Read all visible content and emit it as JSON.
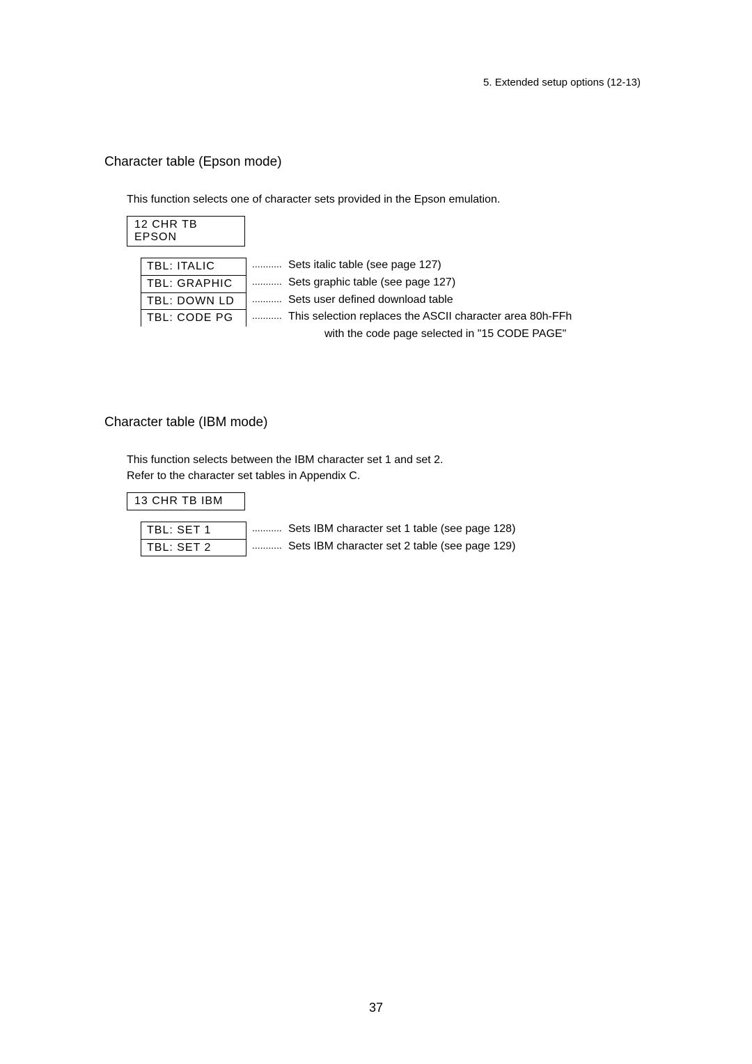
{
  "header_note": "5.  Extended setup options (12-13)",
  "sections": [
    {
      "title": "Character table (Epson mode)",
      "description": "This function selects one of character sets provided in the Epson emulation.",
      "menu_header": "12 CHR TB  EPSON",
      "options": [
        {
          "label": "TBL:  ITALIC",
          "desc": "Sets italic table (see page 127)"
        },
        {
          "label": "TBL:  GRAPHIC",
          "desc": "Sets graphic table (see page 127)"
        },
        {
          "label": "TBL:  DOWN LD",
          "desc": "Sets user defined download table"
        },
        {
          "label": "TBL:  CODE PG",
          "desc": "This selection replaces the ASCII character area 80h-FFh"
        }
      ],
      "continuation": "with the code page selected in \"15 CODE PAGE\""
    },
    {
      "title": "Character table (IBM mode)",
      "description": "This function selects between the IBM character set 1 and set 2.\nRefer to the character set tables in Appendix C.",
      "menu_header": "13 CHR TB  IBM",
      "options": [
        {
          "label": "TBL:  SET 1",
          "desc": "Sets IBM character set 1 table (see page 128)"
        },
        {
          "label": "TBL:  SET 2",
          "desc": "Sets IBM character set 2 table (see page 129)"
        }
      ],
      "continuation": ""
    }
  ],
  "dots": "...........",
  "page_number": "37"
}
